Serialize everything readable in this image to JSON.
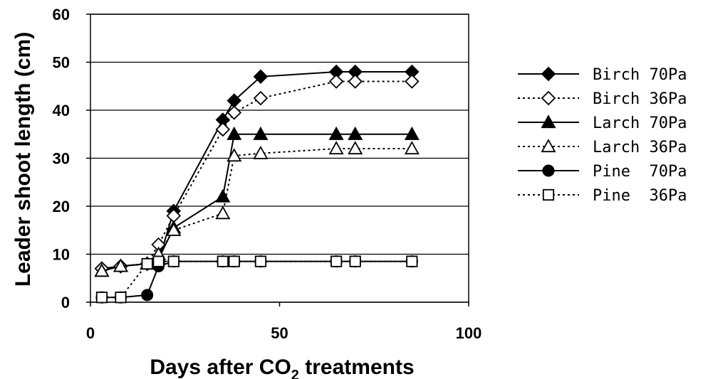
{
  "chart_data": {
    "type": "line",
    "xlabel_main": "Days after CO",
    "xlabel_sub": "2",
    "xlabel_tail": " treatments",
    "ylabel": "Leader shoot length (cm)",
    "xlim": [
      0,
      100
    ],
    "ylim": [
      0,
      60
    ],
    "xticks": [
      "0",
      "50",
      "100"
    ],
    "yticks": [
      "0",
      "10",
      "20",
      "30",
      "40",
      "50",
      "60"
    ],
    "grid": "horizontal",
    "legend_position": "right",
    "series": [
      {
        "name": "Birch 70Pa",
        "marker": "diamond",
        "filled": true,
        "dash": "solid",
        "x": [
          3,
          8,
          15,
          18,
          22,
          35,
          38,
          45,
          65,
          70,
          85
        ],
        "y": [
          7,
          7.5,
          8,
          8.5,
          19,
          38,
          42,
          47,
          48,
          48,
          48
        ]
      },
      {
        "name": "Birch 36Pa",
        "marker": "diamond",
        "filled": false,
        "dash": "dotted",
        "x": [
          3,
          8,
          15,
          18,
          22,
          35,
          38,
          45,
          65,
          70,
          85
        ],
        "y": [
          7,
          7.5,
          8,
          12,
          18,
          36,
          39.5,
          42.5,
          46,
          46,
          46
        ]
      },
      {
        "name": "Larch 70Pa",
        "marker": "triangle",
        "filled": true,
        "dash": "solid",
        "x": [
          3,
          8,
          15,
          18,
          22,
          35,
          38,
          45,
          65,
          70,
          85
        ],
        "y": [
          6.5,
          7.5,
          8,
          9,
          15.5,
          22,
          35,
          35,
          35,
          35,
          35
        ]
      },
      {
        "name": "Larch 36Pa",
        "marker": "triangle",
        "filled": false,
        "dash": "dotted",
        "x": [
          3,
          8,
          15,
          18,
          22,
          35,
          38,
          45,
          65,
          70,
          85
        ],
        "y": [
          6.5,
          7.5,
          8,
          10,
          15,
          18.5,
          30.5,
          31,
          32,
          32,
          32
        ]
      },
      {
        "name": "Pine  70Pa",
        "marker": "circle",
        "filled": true,
        "dash": "solid",
        "x": [
          3,
          8,
          15,
          18,
          22,
          35,
          38,
          45,
          65,
          70,
          85
        ],
        "y": [
          1,
          1,
          1.5,
          7.5,
          8.5,
          8.5,
          8.5,
          8.5,
          8.5,
          8.5,
          8.5
        ]
      },
      {
        "name": "Pine  36Pa",
        "marker": "square",
        "filled": false,
        "dash": "dotted",
        "x": [
          3,
          8,
          15,
          18,
          22,
          35,
          38,
          45,
          65,
          70,
          85
        ],
        "y": [
          1,
          1,
          8,
          8.5,
          8.5,
          8.5,
          8.5,
          8.5,
          8.5,
          8.5,
          8.5
        ]
      }
    ]
  }
}
